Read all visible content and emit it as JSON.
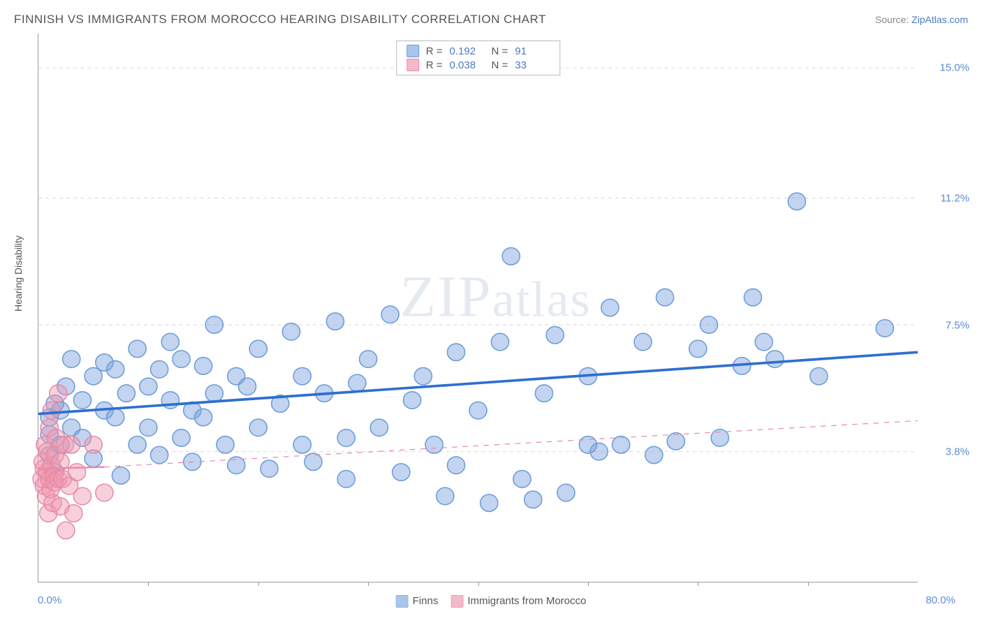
{
  "title": "FINNISH VS IMMIGRANTS FROM MOROCCO HEARING DISABILITY CORRELATION CHART",
  "source": {
    "label": "Source: ",
    "name": "ZipAtlas.com"
  },
  "watermark": "ZIPatlas",
  "chart": {
    "type": "scatter",
    "xlim": [
      0,
      80
    ],
    "ylim": [
      0,
      16
    ],
    "x_axis_labels": {
      "min": "0.0%",
      "max": "80.0%"
    },
    "y_ticks": [
      {
        "value": 3.8,
        "label": "3.8%"
      },
      {
        "value": 7.5,
        "label": "7.5%"
      },
      {
        "value": 11.2,
        "label": "11.2%"
      },
      {
        "value": 15.0,
        "label": "15.0%"
      }
    ],
    "x_tick_positions": [
      10,
      20,
      30,
      40,
      50,
      60,
      70
    ],
    "ylabel": "Hearing Disability",
    "background_color": "#ffffff",
    "grid_color": "#dddddd",
    "series": [
      {
        "name": "Finns",
        "color_fill": "rgba(120,160,220,0.45)",
        "color_stroke": "#6a9bd8",
        "swatch_color": "#a9c5ec",
        "marker_radius": 10,
        "r": 0.192,
        "n": 91,
        "trend": {
          "x1": 0,
          "y1": 4.9,
          "x2": 80,
          "y2": 6.7,
          "color": "#2e6fd1",
          "width": 3,
          "dash": ""
        },
        "points": [
          [
            1,
            3.7
          ],
          [
            1,
            4.3
          ],
          [
            1,
            4.8
          ],
          [
            1.5,
            5.2
          ],
          [
            1.5,
            3.2
          ],
          [
            2,
            4.0
          ],
          [
            2,
            5.0
          ],
          [
            2.5,
            5.7
          ],
          [
            3,
            4.5
          ],
          [
            3,
            6.5
          ],
          [
            4,
            5.3
          ],
          [
            4,
            4.2
          ],
          [
            5,
            6.0
          ],
          [
            5,
            3.6
          ],
          [
            6,
            5.0
          ],
          [
            6,
            6.4
          ],
          [
            7,
            4.8
          ],
          [
            7,
            6.2
          ],
          [
            7.5,
            3.1
          ],
          [
            8,
            5.5
          ],
          [
            9,
            4.0
          ],
          [
            9,
            6.8
          ],
          [
            10,
            5.7
          ],
          [
            10,
            4.5
          ],
          [
            11,
            3.7
          ],
          [
            11,
            6.2
          ],
          [
            12,
            5.3
          ],
          [
            12,
            7.0
          ],
          [
            13,
            4.2
          ],
          [
            13,
            6.5
          ],
          [
            14,
            5.0
          ],
          [
            14,
            3.5
          ],
          [
            15,
            6.3
          ],
          [
            15,
            4.8
          ],
          [
            16,
            7.5
          ],
          [
            16,
            5.5
          ],
          [
            17,
            4.0
          ],
          [
            18,
            6.0
          ],
          [
            18,
            3.4
          ],
          [
            19,
            5.7
          ],
          [
            20,
            4.5
          ],
          [
            20,
            6.8
          ],
          [
            21,
            3.3
          ],
          [
            22,
            5.2
          ],
          [
            23,
            7.3
          ],
          [
            24,
            4.0
          ],
          [
            24,
            6.0
          ],
          [
            25,
            3.5
          ],
          [
            26,
            5.5
          ],
          [
            27,
            7.6
          ],
          [
            28,
            4.2
          ],
          [
            28,
            3.0
          ],
          [
            29,
            5.8
          ],
          [
            30,
            6.5
          ],
          [
            31,
            4.5
          ],
          [
            32,
            7.8
          ],
          [
            33,
            3.2
          ],
          [
            34,
            5.3
          ],
          [
            35,
            6.0
          ],
          [
            36,
            4.0
          ],
          [
            37,
            2.5
          ],
          [
            38,
            3.4
          ],
          [
            38,
            6.7
          ],
          [
            40,
            5.0
          ],
          [
            41,
            2.3
          ],
          [
            42,
            7.0
          ],
          [
            43,
            9.5
          ],
          [
            44,
            3.0
          ],
          [
            45,
            2.4
          ],
          [
            46,
            5.5
          ],
          [
            47,
            7.2
          ],
          [
            48,
            2.6
          ],
          [
            50,
            4.0
          ],
          [
            50,
            6.0
          ],
          [
            51,
            3.8
          ],
          [
            52,
            8.0
          ],
          [
            53,
            4.0
          ],
          [
            55,
            7.0
          ],
          [
            56,
            3.7
          ],
          [
            57,
            8.3
          ],
          [
            58,
            4.1
          ],
          [
            60,
            6.8
          ],
          [
            61,
            7.5
          ],
          [
            62,
            4.2
          ],
          [
            64,
            6.3
          ],
          [
            65,
            8.3
          ],
          [
            66,
            7.0
          ],
          [
            67,
            6.5
          ],
          [
            69,
            11.1
          ],
          [
            71,
            6.0
          ],
          [
            77,
            7.4
          ]
        ]
      },
      {
        "name": "Immigrants from Morocco",
        "color_fill": "rgba(240,150,175,0.45)",
        "color_stroke": "#e88aa5",
        "swatch_color": "#f5b9c9",
        "marker_radius": 10,
        "r": 0.038,
        "n": 33,
        "trend_solid": {
          "x1": 0,
          "y1": 3.3,
          "x2": 6,
          "y2": 3.35,
          "color": "#e88aa5",
          "width": 2
        },
        "trend_dash": {
          "x1": 6,
          "y1": 3.35,
          "x2": 80,
          "y2": 4.7,
          "color": "#e88aa5",
          "width": 1,
          "dash": "6,6"
        },
        "points": [
          [
            0.3,
            3.0
          ],
          [
            0.4,
            3.5
          ],
          [
            0.5,
            2.8
          ],
          [
            0.5,
            3.3
          ],
          [
            0.6,
            4.0
          ],
          [
            0.7,
            2.5
          ],
          [
            0.8,
            3.2
          ],
          [
            0.8,
            3.8
          ],
          [
            0.9,
            2.0
          ],
          [
            1.0,
            3.0
          ],
          [
            1.0,
            4.5
          ],
          [
            1.1,
            2.7
          ],
          [
            1.2,
            3.4
          ],
          [
            1.2,
            5.0
          ],
          [
            1.3,
            2.3
          ],
          [
            1.4,
            3.1
          ],
          [
            1.5,
            3.7
          ],
          [
            1.5,
            2.9
          ],
          [
            1.6,
            4.2
          ],
          [
            1.8,
            3.0
          ],
          [
            1.8,
            5.5
          ],
          [
            2.0,
            2.2
          ],
          [
            2.0,
            3.5
          ],
          [
            2.2,
            3.0
          ],
          [
            2.4,
            4.0
          ],
          [
            2.5,
            1.5
          ],
          [
            2.8,
            2.8
          ],
          [
            3.0,
            4.0
          ],
          [
            3.2,
            2.0
          ],
          [
            3.5,
            3.2
          ],
          [
            4.0,
            2.5
          ],
          [
            5.0,
            4.0
          ],
          [
            6.0,
            2.6
          ]
        ]
      }
    ],
    "legend_bottom": [
      {
        "swatch": "#a9c5ec",
        "label": "Finns"
      },
      {
        "swatch": "#f5b9c9",
        "label": "Immigrants from Morocco"
      }
    ]
  }
}
